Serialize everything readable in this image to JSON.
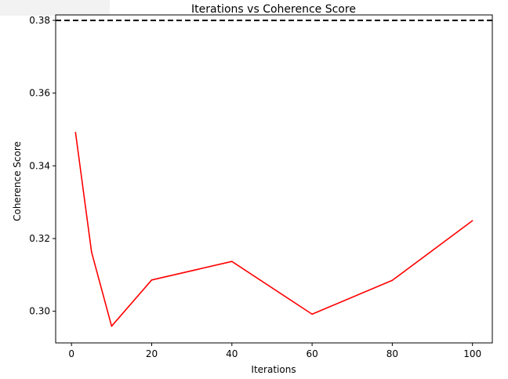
{
  "chart_data": {
    "type": "line",
    "title": "Iterations vs Coherence Score",
    "xlabel": "Iterations",
    "ylabel": "Coherence Score",
    "xlim": [
      -3.95,
      104.95
    ],
    "ylim": [
      0.2913,
      0.3815
    ],
    "x_ticks": [
      0,
      20,
      40,
      60,
      80,
      100
    ],
    "y_ticks": [
      0.3,
      0.32,
      0.34,
      0.36,
      0.38
    ],
    "x_tick_labels": [
      "0",
      "20",
      "40",
      "60",
      "80",
      "100"
    ],
    "y_tick_labels": [
      "0.30",
      "0.32",
      "0.34",
      "0.36",
      "0.38"
    ],
    "grid": false,
    "series": [
      {
        "color": "#ff0000",
        "x": [
          1,
          5,
          10,
          20,
          40,
          60,
          80,
          100
        ],
        "y": [
          0.3492,
          0.3163,
          0.2959,
          0.3086,
          0.3137,
          0.2992,
          0.3085,
          0.3249
        ]
      }
    ],
    "reference_line": {
      "y": 0.38,
      "color": "#000000",
      "style": "dashed"
    }
  }
}
